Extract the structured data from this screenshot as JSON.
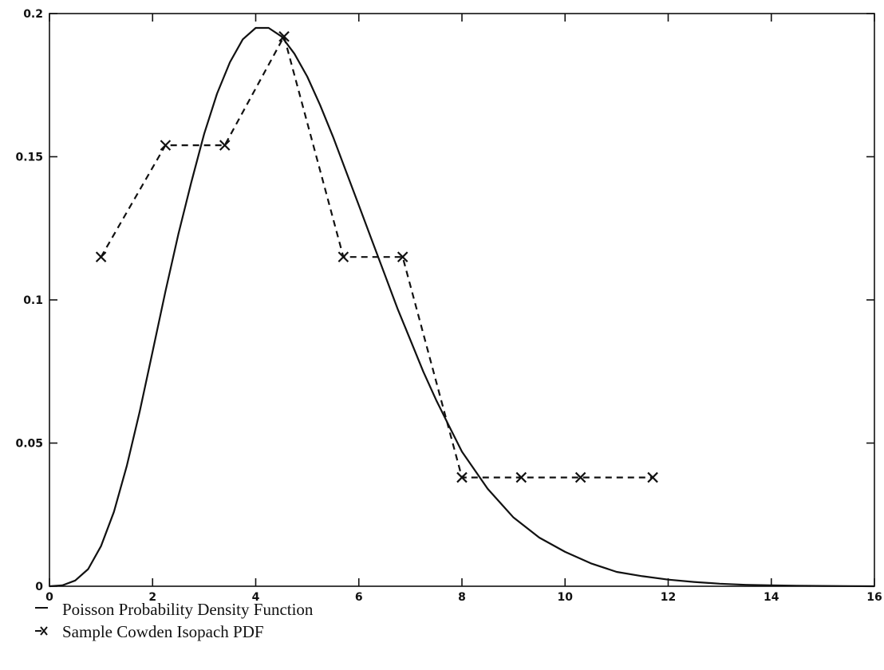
{
  "chart_data": {
    "type": "line",
    "title": "",
    "xlabel": "",
    "ylabel": "",
    "xlim": [
      0,
      16
    ],
    "ylim": [
      0,
      0.2
    ],
    "x_ticks": [
      0,
      2,
      4,
      6,
      8,
      10,
      12,
      14,
      16
    ],
    "x_tick_labels": [
      "0",
      "2",
      "4",
      "6",
      "8",
      "10",
      "12",
      "14",
      "16"
    ],
    "y_ticks": [
      0,
      0.05,
      0.1,
      0.15,
      0.2
    ],
    "y_tick_labels": [
      "0",
      "0.05",
      "0.1",
      "0.15",
      "0.2"
    ],
    "grid": false,
    "legend_position": "bottom-left, below plot",
    "series": [
      {
        "name": "Poisson Probability Density Function",
        "style": "solid",
        "color": "#111111",
        "x": [
          0,
          0.25,
          0.5,
          0.75,
          1,
          1.25,
          1.5,
          1.75,
          2,
          2.25,
          2.5,
          2.75,
          3,
          3.25,
          3.5,
          3.75,
          4,
          4.25,
          4.5,
          4.75,
          5,
          5.25,
          5.5,
          5.75,
          6,
          6.25,
          6.5,
          6.75,
          7,
          7.25,
          7.5,
          7.75,
          8,
          8.5,
          9,
          9.5,
          10,
          10.5,
          11,
          11.5,
          12,
          12.5,
          13,
          13.5,
          14,
          14.5,
          15,
          15.5,
          16
        ],
        "y": [
          0,
          0.0003,
          0.002,
          0.006,
          0.014,
          0.026,
          0.042,
          0.061,
          0.082,
          0.103,
          0.123,
          0.141,
          0.158,
          0.172,
          0.183,
          0.191,
          0.195,
          0.195,
          0.192,
          0.186,
          0.178,
          0.168,
          0.157,
          0.145,
          0.133,
          0.121,
          0.109,
          0.097,
          0.086,
          0.075,
          0.065,
          0.056,
          0.047,
          0.034,
          0.024,
          0.017,
          0.012,
          0.008,
          0.005,
          0.0035,
          0.0023,
          0.0015,
          0.0009,
          0.0005,
          0.0003,
          0.0002,
          0.0001,
          5e-05,
          0
        ]
      },
      {
        "name": "Sample Cowden Isopach PDF",
        "style": "dashed",
        "marker": "x",
        "color": "#111111",
        "x": [
          1.0,
          2.25,
          3.4,
          4.55,
          5.7,
          6.85,
          8.0,
          9.15,
          10.3,
          11.7
        ],
        "y": [
          0.115,
          0.154,
          0.154,
          0.192,
          0.115,
          0.115,
          0.038,
          0.038,
          0.038,
          0.038
        ]
      }
    ]
  },
  "legend": {
    "items": [
      {
        "label": "Poisson Probability Density Function"
      },
      {
        "label": "Sample Cowden Isopach PDF"
      }
    ]
  }
}
